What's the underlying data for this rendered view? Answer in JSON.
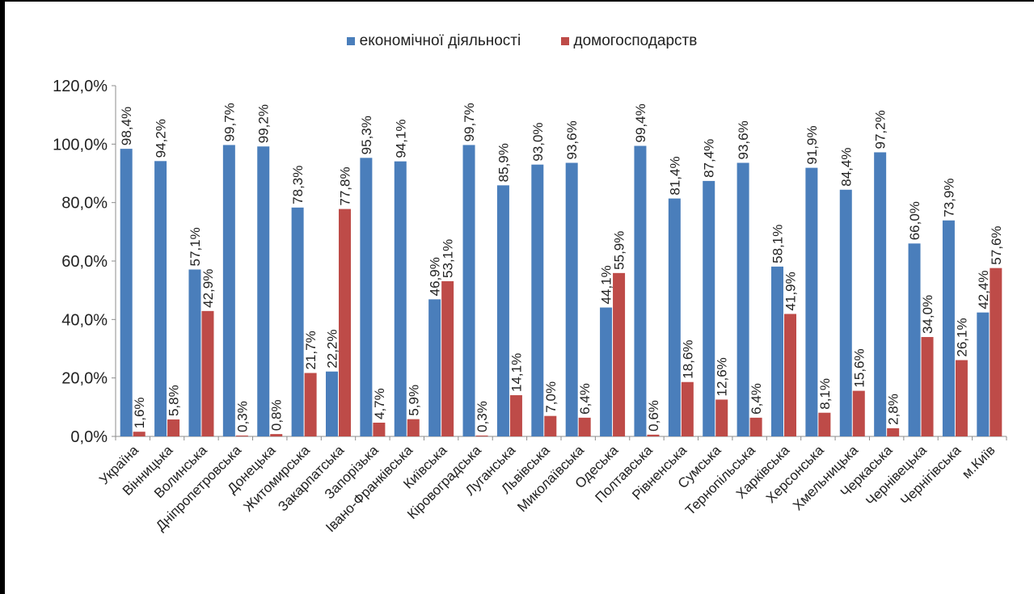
{
  "chart_data": {
    "type": "bar",
    "categories": [
      "Україна",
      "Вінницька",
      "Волинська",
      "Дніпропетровська",
      "Донецька",
      "Житомирська",
      "Закарпатська",
      "Запорізька",
      "Івано-Франківська",
      "Київська",
      "Кіровоградська",
      "Луганська",
      "Львівська",
      "Миколаївська",
      "Одеська",
      "Полтавська",
      "Рівненська",
      "Сумська",
      "Тернопільська",
      "Харківська",
      "Херсонська",
      "Хмельницька",
      "Черкаська",
      "Чернівецька",
      "Чернігівська",
      "м.Київ"
    ],
    "series": [
      {
        "name": "економічної діяльності",
        "color": "#4a7ebb",
        "values": [
          98.4,
          94.2,
          57.1,
          99.7,
          99.2,
          78.3,
          22.2,
          95.3,
          94.1,
          46.9,
          99.7,
          85.9,
          93.0,
          93.6,
          44.1,
          99.4,
          81.4,
          87.4,
          93.6,
          58.1,
          91.9,
          84.4,
          97.2,
          66.0,
          73.9,
          42.4
        ],
        "labels": [
          "98,4%",
          "94,2%",
          "57,1%",
          "99,7%",
          "99,2%",
          "78,3%",
          "22,2%",
          "95,3%",
          "94,1%",
          "46,9%",
          "99,7%",
          "85,9%",
          "93,0%",
          "93,6%",
          "44,1%",
          "99,4%",
          "81,4%",
          "87,4%",
          "93,6%",
          "58,1%",
          "91,9%",
          "84,4%",
          "97,2%",
          "66,0%",
          "73,9%",
          "42,4%"
        ]
      },
      {
        "name": "домогосподарств",
        "color": "#be4b48",
        "values": [
          1.6,
          5.8,
          42.9,
          0.3,
          0.8,
          21.7,
          77.8,
          4.7,
          5.9,
          53.1,
          0.3,
          14.1,
          7.0,
          6.4,
          55.9,
          0.6,
          18.6,
          12.6,
          6.4,
          41.9,
          8.1,
          15.6,
          2.8,
          34.0,
          26.1,
          57.6
        ],
        "labels": [
          "1,6%",
          "5,8%",
          "42,9%",
          "0,3%",
          "0,8%",
          "21,7%",
          "77,8%",
          "4,7%",
          "5,9%",
          "53,1%",
          "0,3%",
          "14,1%",
          "7,0%",
          "6,4%",
          "55,9%",
          "0,6%",
          "18,6%",
          "12,6%",
          "6,4%",
          "41,9%",
          "8,1%",
          "15,6%",
          "2,8%",
          "34,0%",
          "26,1%",
          "57,6%"
        ]
      }
    ],
    "y_ticks": [
      0,
      20,
      40,
      60,
      80,
      100,
      120
    ],
    "y_tick_labels": [
      "0,0%",
      "20,0%",
      "40,0%",
      "60,0%",
      "80,0%",
      "100,0%",
      "120,0%"
    ],
    "ylim": [
      0,
      120
    ],
    "grid": false,
    "legend_position": "top"
  }
}
